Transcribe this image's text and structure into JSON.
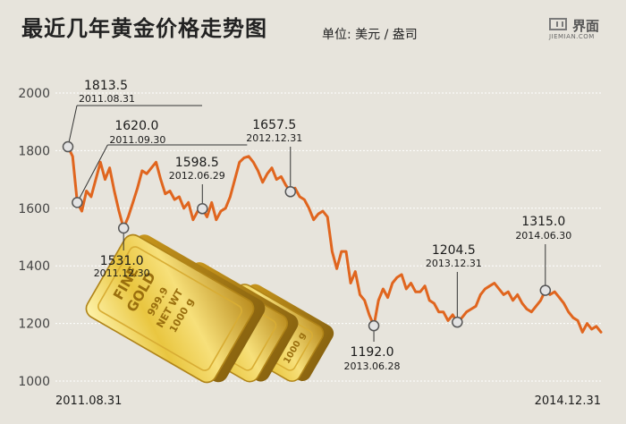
{
  "header": {
    "title": "最近几年黄金价格走势图",
    "unit": "单位: 美元 / 盎司",
    "logo_text": "界面",
    "logo_sub": "JIEMIAN.COM"
  },
  "colors": {
    "line": "#e0651e",
    "background": "#e7e4dc",
    "grid": "#ffffff",
    "marker_fill": "#e3e3e3",
    "marker_stroke": "#555555"
  },
  "bars_text": [
    "FINE",
    "GOLD",
    "999.9",
    "NET WT",
    "1000 g"
  ],
  "chart_data": {
    "type": "line",
    "title": "最近几年黄金价格走势图",
    "unit_label": "单位: 美元 / 盎司",
    "x_start_label": "2011.08.31",
    "x_end_label": "2014.12.31",
    "ylim": [
      1000,
      2000
    ],
    "yticks": [
      1000,
      1200,
      1400,
      1600,
      1800,
      2000
    ],
    "grid": "horizontal",
    "series": [
      {
        "values": [
          1813.5,
          1780,
          1620,
          1590,
          1660,
          1640,
          1700,
          1760,
          1700,
          1740,
          1660,
          1590,
          1531,
          1570,
          1620,
          1670,
          1730,
          1720,
          1740,
          1760,
          1700,
          1650,
          1660,
          1630,
          1640,
          1600,
          1620,
          1560,
          1590,
          1598.5,
          1570,
          1620,
          1560,
          1590,
          1600,
          1640,
          1700,
          1760,
          1775,
          1780,
          1760,
          1730,
          1690,
          1720,
          1740,
          1700,
          1710,
          1680,
          1657.5,
          1670,
          1640,
          1630,
          1600,
          1560,
          1580,
          1590,
          1570,
          1450,
          1390,
          1450,
          1450,
          1340,
          1380,
          1300,
          1280,
          1230,
          1192,
          1280,
          1320,
          1290,
          1340,
          1360,
          1370,
          1320,
          1340,
          1310,
          1310,
          1330,
          1280,
          1270,
          1240,
          1240,
          1210,
          1230,
          1204.5,
          1220,
          1240,
          1250,
          1260,
          1300,
          1320,
          1330,
          1340,
          1320,
          1300,
          1310,
          1280,
          1300,
          1270,
          1250,
          1240,
          1260,
          1280,
          1315,
          1300,
          1310,
          1290,
          1270,
          1240,
          1220,
          1210,
          1170,
          1200,
          1180,
          1190,
          1170
        ]
      }
    ],
    "annotations": [
      {
        "index": 0,
        "value": "1813.5",
        "date": "2011.08.31"
      },
      {
        "index": 2,
        "value": "1620.0",
        "date": "2011.09.30"
      },
      {
        "index": 12,
        "value": "1531.0",
        "date": "2011.12.30"
      },
      {
        "index": 29,
        "value": "1598.5",
        "date": "2012.06.29"
      },
      {
        "index": 48,
        "value": "1657.5",
        "date": "2012.12.31"
      },
      {
        "index": 66,
        "value": "1192.0",
        "date": "2013.06.28"
      },
      {
        "index": 84,
        "value": "1204.5",
        "date": "2013.12.31"
      },
      {
        "index": 103,
        "value": "1315.0",
        "date": "2014.06.30"
      }
    ]
  }
}
